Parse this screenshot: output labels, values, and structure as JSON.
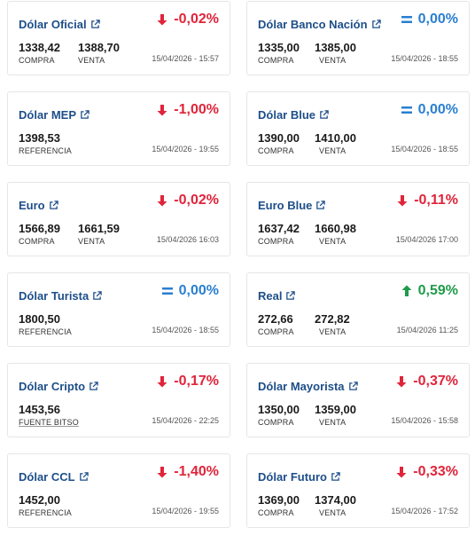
{
  "cards": [
    {
      "name": "Dólar Oficial",
      "change": "-0,02%",
      "dir": "down",
      "v1": "1338,42",
      "l1": "COMPRA",
      "v2": "1388,70",
      "l2": "VENTA",
      "time": "15/04/2026 - 15:57"
    },
    {
      "name": "Dólar Banco Nación",
      "change": "0,00%",
      "dir": "eq",
      "v1": "1335,00",
      "l1": "COMPRA",
      "v2": "1385,00",
      "l2": "VENTA",
      "time": "15/04/2026 - 18:55"
    },
    {
      "name": "Dólar MEP",
      "change": "-1,00%",
      "dir": "down",
      "v1": "1398,53",
      "l1": "REFERENCIA",
      "v2": "",
      "l2": "",
      "time": "15/04/2026 - 19:55"
    },
    {
      "name": "Dólar Blue",
      "change": "0,00%",
      "dir": "eq",
      "v1": "1390,00",
      "l1": "COMPRA",
      "v2": "1410,00",
      "l2": "VENTA",
      "time": "15/04/2026 - 18:55"
    },
    {
      "name": "Euro",
      "change": "-0,02%",
      "dir": "down",
      "v1": "1566,89",
      "l1": "COMPRA",
      "v2": "1661,59",
      "l2": "VENTA",
      "time": "15/04/2026 16:03"
    },
    {
      "name": "Euro Blue",
      "change": "-0,11%",
      "dir": "down",
      "v1": "1637,42",
      "l1": "COMPRA",
      "v2": "1660,98",
      "l2": "VENTA",
      "time": "15/04/2026 17:00"
    },
    {
      "name": "Dólar Turista",
      "change": "0,00%",
      "dir": "eq",
      "v1": "1800,50",
      "l1": "REFERENCIA",
      "v2": "",
      "l2": "",
      "time": "15/04/2026 - 18:55"
    },
    {
      "name": "Real",
      "change": "0,59%",
      "dir": "up",
      "v1": "272,66",
      "l1": "COMPRA",
      "v2": "272,82",
      "l2": "VENTA",
      "time": "15/04/2026 11:25"
    },
    {
      "name": "Dólar Cripto",
      "change": "-0,17%",
      "dir": "down",
      "v1": "1453,56",
      "l1": "FUENTE BITSO",
      "v2": "",
      "l2": "",
      "time": "15/04/2026 - 22:25"
    },
    {
      "name": "Dólar Mayorista",
      "change": "-0,37%",
      "dir": "down",
      "v1": "1350,00",
      "l1": "COMPRA",
      "v2": "1359,00",
      "l2": "VENTA",
      "time": "15/04/2026 - 15:58"
    },
    {
      "name": "Dólar CCL",
      "change": "-1,40%",
      "dir": "down",
      "v1": "1452,00",
      "l1": "REFERENCIA",
      "v2": "",
      "l2": "",
      "time": "15/04/2026 - 19:55"
    },
    {
      "name": "Dólar Futuro",
      "change": "-0,33%",
      "dir": "down",
      "v1": "1369,00",
      "l1": "COMPRA",
      "v2": "1374,00",
      "l2": "VENTA",
      "time": "15/04/2026 - 17:52"
    }
  ],
  "icons": {
    "link": "external-link-icon",
    "down": "arrow-down-icon",
    "up": "arrow-up-icon",
    "eq": "equals-icon"
  },
  "colors": {
    "title": "#1d4e89",
    "down": "#e0243a",
    "up": "#1e9b4a",
    "eq": "#2a7fd0"
  }
}
